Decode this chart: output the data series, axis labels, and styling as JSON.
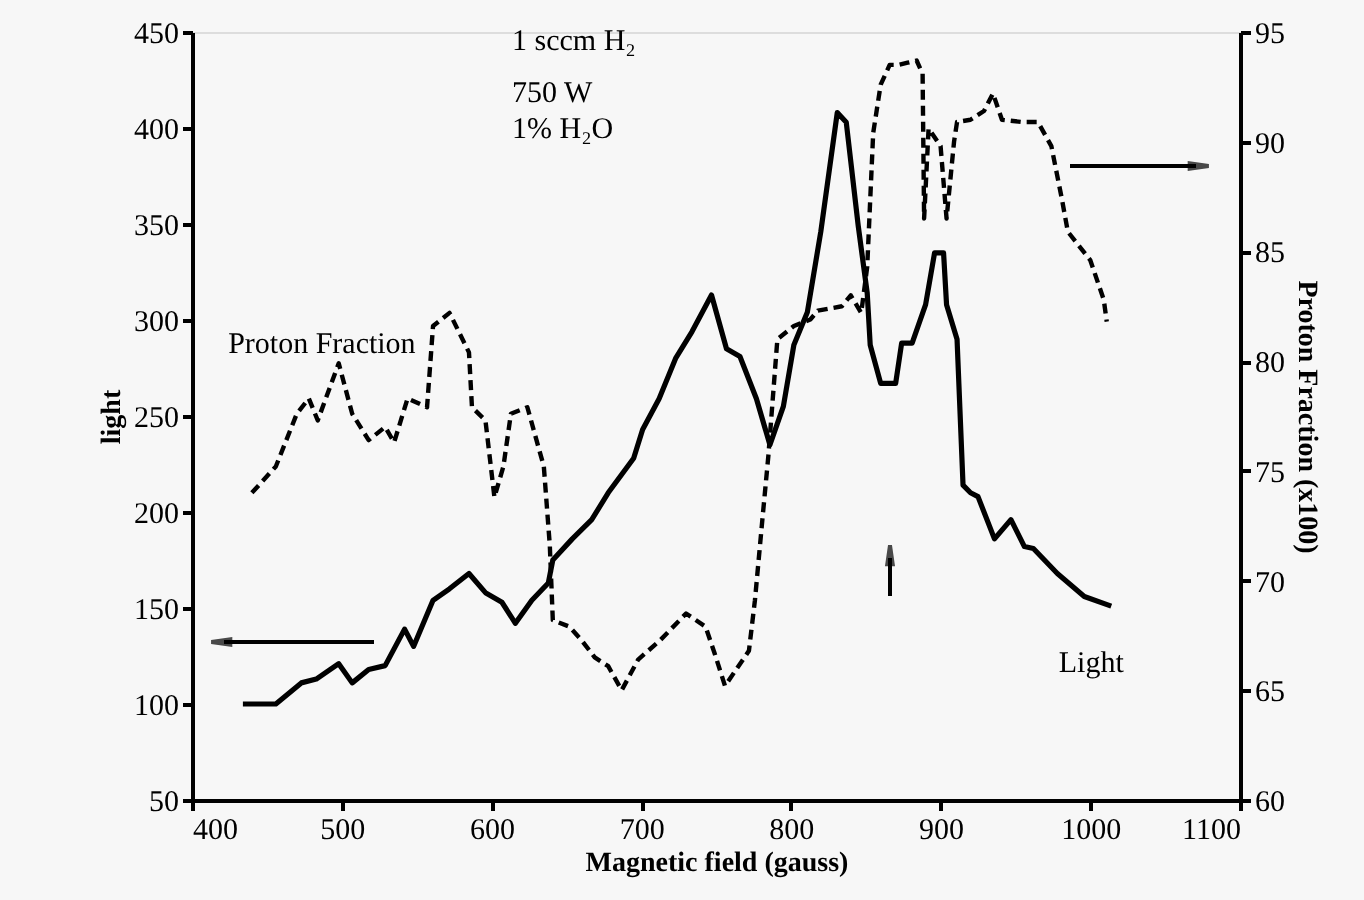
{
  "chart_data": {
    "type": "line",
    "xlabel": "Magnetic field (gauss)",
    "ylabel": "light",
    "y2label": "Proton Fraction (x100)",
    "xlim": [
      400,
      1100
    ],
    "xticks": [
      400,
      500,
      600,
      700,
      800,
      900,
      1000,
      1100
    ],
    "ylim": [
      50,
      450
    ],
    "yticks": [
      50,
      100,
      150,
      200,
      250,
      300,
      350,
      400,
      450
    ],
    "y2lim": [
      60,
      95
    ],
    "y2ticks": [
      60,
      65,
      70,
      75,
      80,
      85,
      90,
      95
    ],
    "grid": false,
    "annotations": [
      "1 sccm H₂",
      "750 W",
      "1% H₂O"
    ],
    "series": [
      {
        "name": "Light",
        "color": "#000000",
        "line_style": "solid",
        "x": [
          434,
          456,
          473,
          483,
          498,
          507,
          518,
          529,
          542,
          548,
          561,
          572,
          585,
          596,
          607,
          616,
          627,
          638,
          641,
          654,
          667,
          678,
          695,
          701,
          712,
          723,
          734,
          747,
          757,
          766,
          777,
          786,
          795,
          802,
          811,
          820,
          831,
          837,
          845,
          851,
          853,
          860,
          870,
          874,
          881,
          890,
          896,
          902,
          904,
          911,
          915,
          920,
          925,
          936,
          947,
          956,
          962,
          978,
          996,
          1014
        ],
        "values": [
          100,
          100,
          111,
          113,
          121,
          111,
          118,
          120,
          139,
          130,
          154,
          160,
          168,
          158,
          153,
          142,
          154,
          163,
          175,
          186,
          196,
          210,
          228,
          243,
          259,
          280,
          294,
          313,
          285,
          281,
          259,
          235,
          255,
          287,
          304,
          346,
          408,
          403,
          349,
          314,
          287,
          267,
          267,
          288,
          288,
          308,
          335,
          335,
          308,
          290,
          214,
          210,
          208,
          186,
          196,
          182,
          181,
          168,
          156,
          151
        ]
      },
      {
        "name": "Proton Fraction",
        "color": "#000000",
        "line_style": "dashed",
        "axis": "y2",
        "x": [
          440,
          456,
          470,
          478,
          484,
          498,
          507,
          518,
          529,
          535,
          544,
          557,
          561,
          572,
          585,
          587,
          596,
          602,
          608,
          613,
          624,
          635,
          639,
          641,
          652,
          660,
          669,
          678,
          687,
          698,
          713,
          730,
          743,
          749,
          756,
          772,
          776,
          781,
          785,
          791,
          802,
          813,
          818,
          834,
          840,
          847,
          851,
          855,
          860,
          866,
          872,
          878,
          884,
          888,
          889,
          892,
          900,
          904,
          909,
          911,
          920,
          929,
          935,
          941,
          954,
          965,
          974,
          981,
          985,
          1000,
          1009,
          1011
        ],
        "values": [
          74.0,
          75.2,
          77.6,
          78.3,
          77.3,
          79.9,
          77.6,
          76.4,
          77.0,
          76.3,
          78.3,
          77.9,
          81.6,
          82.2,
          80.4,
          77.9,
          77.3,
          73.8,
          75.2,
          77.6,
          77.9,
          75.2,
          71.6,
          68.2,
          67.9,
          67.3,
          66.5,
          66.1,
          65.0,
          66.4,
          67.3,
          68.5,
          67.9,
          66.7,
          65.2,
          66.8,
          69.1,
          72.8,
          75.7,
          81.0,
          81.6,
          81.9,
          82.3,
          82.5,
          83.0,
          82.2,
          84.3,
          90.4,
          92.6,
          93.5,
          93.5,
          93.6,
          93.7,
          93.1,
          86.5,
          90.6,
          89.8,
          86.5,
          90.0,
          90.9,
          91.0,
          91.4,
          92.2,
          91.0,
          90.9,
          90.9,
          89.8,
          87.4,
          85.9,
          84.6,
          82.8,
          81.8
        ]
      }
    ]
  }
}
